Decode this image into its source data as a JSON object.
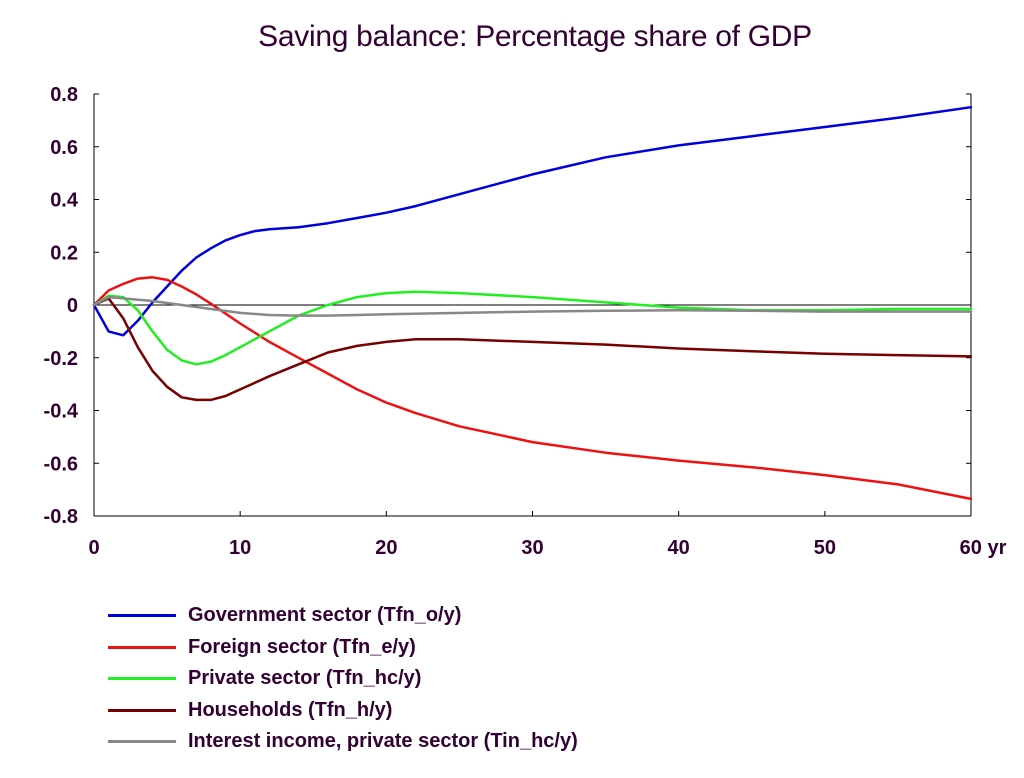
{
  "chart_data": {
    "type": "line",
    "title": "Saving balance: Percentage share of GDP",
    "xlabel": "",
    "ylabel": "",
    "x_unit": "yr",
    "xlim": [
      0,
      60
    ],
    "ylim": [
      -0.8,
      0.8
    ],
    "x_ticks": [
      0,
      10,
      20,
      30,
      40,
      50,
      60
    ],
    "y_ticks": [
      0.8,
      0.6,
      0.4,
      0.2,
      0,
      -0.2,
      -0.4,
      -0.6,
      -0.8
    ],
    "zero_line": true,
    "grid": false,
    "legend_position": "bottom",
    "series": [
      {
        "name": "Government sector (Tfn_o/y)",
        "color": "#0000dd",
        "points": [
          [
            0,
            0
          ],
          [
            1,
            -0.1
          ],
          [
            2,
            -0.115
          ],
          [
            3,
            -0.06
          ],
          [
            4,
            0.01
          ],
          [
            5,
            0.07
          ],
          [
            6,
            0.13
          ],
          [
            7,
            0.18
          ],
          [
            8,
            0.215
          ],
          [
            9,
            0.245
          ],
          [
            10,
            0.265
          ],
          [
            11,
            0.28
          ],
          [
            12,
            0.287
          ],
          [
            14,
            0.295
          ],
          [
            16,
            0.31
          ],
          [
            18,
            0.33
          ],
          [
            20,
            0.35
          ],
          [
            22,
            0.375
          ],
          [
            25,
            0.42
          ],
          [
            30,
            0.495
          ],
          [
            35,
            0.56
          ],
          [
            40,
            0.605
          ],
          [
            45,
            0.64
          ],
          [
            50,
            0.675
          ],
          [
            55,
            0.71
          ],
          [
            60,
            0.75
          ]
        ]
      },
      {
        "name": "Foreign sector (Tfn_e/y)",
        "color": "#ee1111",
        "points": [
          [
            0,
            0
          ],
          [
            1,
            0.055
          ],
          [
            2,
            0.08
          ],
          [
            3,
            0.1
          ],
          [
            4,
            0.105
          ],
          [
            5,
            0.095
          ],
          [
            6,
            0.07
          ],
          [
            7,
            0.04
          ],
          [
            8,
            0.005
          ],
          [
            10,
            -0.07
          ],
          [
            12,
            -0.14
          ],
          [
            14,
            -0.2
          ],
          [
            16,
            -0.26
          ],
          [
            18,
            -0.32
          ],
          [
            20,
            -0.37
          ],
          [
            22,
            -0.41
          ],
          [
            25,
            -0.46
          ],
          [
            30,
            -0.52
          ],
          [
            35,
            -0.56
          ],
          [
            40,
            -0.59
          ],
          [
            45,
            -0.615
          ],
          [
            50,
            -0.645
          ],
          [
            55,
            -0.68
          ],
          [
            60,
            -0.735
          ]
        ]
      },
      {
        "name": "Private sector (Tfn_hc/y)",
        "color": "#22ee22",
        "points": [
          [
            0,
            0
          ],
          [
            1,
            0.035
          ],
          [
            2,
            0.03
          ],
          [
            3,
            -0.02
          ],
          [
            4,
            -0.1
          ],
          [
            5,
            -0.17
          ],
          [
            6,
            -0.21
          ],
          [
            7,
            -0.225
          ],
          [
            8,
            -0.215
          ],
          [
            9,
            -0.19
          ],
          [
            10,
            -0.16
          ],
          [
            12,
            -0.1
          ],
          [
            14,
            -0.04
          ],
          [
            16,
            0.0
          ],
          [
            18,
            0.03
          ],
          [
            20,
            0.045
          ],
          [
            22,
            0.05
          ],
          [
            25,
            0.045
          ],
          [
            30,
            0.03
          ],
          [
            35,
            0.01
          ],
          [
            40,
            -0.01
          ],
          [
            45,
            -0.02
          ],
          [
            50,
            -0.02
          ],
          [
            55,
            -0.015
          ],
          [
            60,
            -0.015
          ]
        ]
      },
      {
        "name": "Households (Tfn_h/y)",
        "color": "#770000",
        "points": [
          [
            0,
            0
          ],
          [
            1,
            0.025
          ],
          [
            2,
            -0.05
          ],
          [
            3,
            -0.16
          ],
          [
            4,
            -0.25
          ],
          [
            5,
            -0.31
          ],
          [
            6,
            -0.35
          ],
          [
            7,
            -0.36
          ],
          [
            8,
            -0.36
          ],
          [
            9,
            -0.345
          ],
          [
            10,
            -0.32
          ],
          [
            12,
            -0.27
          ],
          [
            14,
            -0.225
          ],
          [
            16,
            -0.18
          ],
          [
            18,
            -0.155
          ],
          [
            20,
            -0.14
          ],
          [
            22,
            -0.13
          ],
          [
            25,
            -0.13
          ],
          [
            30,
            -0.14
          ],
          [
            35,
            -0.15
          ],
          [
            40,
            -0.165
          ],
          [
            45,
            -0.175
          ],
          [
            50,
            -0.185
          ],
          [
            55,
            -0.19
          ],
          [
            60,
            -0.195
          ]
        ]
      },
      {
        "name": "Interest income, private sector (Tin_hc/y)",
        "color": "#888888",
        "points": [
          [
            0,
            0
          ],
          [
            1,
            0.03
          ],
          [
            2,
            0.025
          ],
          [
            4,
            0.015
          ],
          [
            6,
            0.0
          ],
          [
            8,
            -0.015
          ],
          [
            10,
            -0.03
          ],
          [
            12,
            -0.038
          ],
          [
            14,
            -0.04
          ],
          [
            16,
            -0.04
          ],
          [
            18,
            -0.038
          ],
          [
            20,
            -0.035
          ],
          [
            25,
            -0.03
          ],
          [
            30,
            -0.025
          ],
          [
            35,
            -0.022
          ],
          [
            40,
            -0.02
          ],
          [
            45,
            -0.022
          ],
          [
            50,
            -0.025
          ],
          [
            55,
            -0.025
          ],
          [
            60,
            -0.025
          ]
        ]
      }
    ]
  }
}
